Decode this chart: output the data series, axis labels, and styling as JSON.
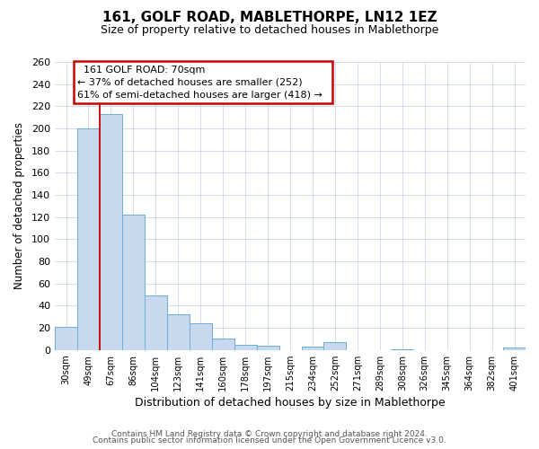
{
  "title": "161, GOLF ROAD, MABLETHORPE, LN12 1EZ",
  "subtitle": "Size of property relative to detached houses in Mablethorpe",
  "xlabel": "Distribution of detached houses by size in Mablethorpe",
  "ylabel": "Number of detached properties",
  "bar_labels": [
    "30sqm",
    "49sqm",
    "67sqm",
    "86sqm",
    "104sqm",
    "123sqm",
    "141sqm",
    "160sqm",
    "178sqm",
    "197sqm",
    "215sqm",
    "234sqm",
    "252sqm",
    "271sqm",
    "289sqm",
    "308sqm",
    "326sqm",
    "345sqm",
    "364sqm",
    "382sqm",
    "401sqm"
  ],
  "bar_values": [
    21,
    200,
    213,
    122,
    49,
    32,
    24,
    10,
    5,
    4,
    0,
    3,
    7,
    0,
    0,
    1,
    0,
    0,
    0,
    0,
    2
  ],
  "bar_color": "#c8d9ed",
  "bar_edge_color": "#6aaedc",
  "red_line_index": 2,
  "ylim": [
    0,
    260
  ],
  "yticks": [
    0,
    20,
    40,
    60,
    80,
    100,
    120,
    140,
    160,
    180,
    200,
    220,
    240,
    260
  ],
  "annotation_title": "161 GOLF ROAD: 70sqm",
  "annotation_line1": "← 37% of detached houses are smaller (252)",
  "annotation_line2": "61% of semi-detached houses are larger (418) →",
  "annotation_box_color": "#ffffff",
  "annotation_box_edge": "#cc0000",
  "footer1": "Contains HM Land Registry data © Crown copyright and database right 2024.",
  "footer2": "Contains public sector information licensed under the Open Government Licence v3.0.",
  "background_color": "#ffffff",
  "grid_color": "#ccd9e8"
}
